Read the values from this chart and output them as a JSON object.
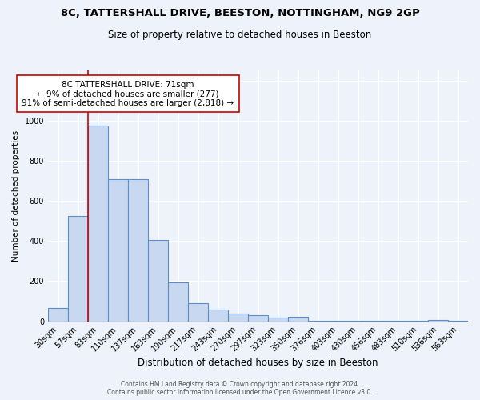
{
  "title": "8C, TATTERSHALL DRIVE, BEESTON, NOTTINGHAM, NG9 2GP",
  "subtitle": "Size of property relative to detached houses in Beeston",
  "xlabel": "Distribution of detached houses by size in Beeston",
  "ylabel": "Number of detached properties",
  "footer_line1": "Contains HM Land Registry data © Crown copyright and database right 2024.",
  "footer_line2": "Contains public sector information licensed under the Open Government Licence v3.0.",
  "categories": [
    "30sqm",
    "57sqm",
    "83sqm",
    "110sqm",
    "137sqm",
    "163sqm",
    "190sqm",
    "217sqm",
    "243sqm",
    "270sqm",
    "297sqm",
    "323sqm",
    "350sqm",
    "376sqm",
    "403sqm",
    "430sqm",
    "456sqm",
    "483sqm",
    "510sqm",
    "536sqm",
    "563sqm"
  ],
  "values": [
    65,
    525,
    975,
    710,
    710,
    405,
    195,
    90,
    58,
    38,
    30,
    17,
    22,
    4,
    3,
    2,
    2,
    1,
    2,
    8,
    2
  ],
  "bar_color": "#c8d8f0",
  "bar_edge_color": "#5b8fc9",
  "bar_edge_width": 0.8,
  "ylim": [
    0,
    1250
  ],
  "yticks": [
    0,
    200,
    400,
    600,
    800,
    1000,
    1200
  ],
  "red_line_x": 1.5,
  "red_line_color": "#cc0000",
  "annotation_text": "8C TATTERSHALL DRIVE: 71sqm\n← 9% of detached houses are smaller (277)\n91% of semi-detached houses are larger (2,818) →",
  "annotation_box_color": "#ffffff",
  "annotation_box_edge_color": "#cc0000",
  "bg_color": "#eef2fb",
  "plot_bg_color": "#eef2fb",
  "grid_color": "#ffffff",
  "title_fontsize": 9.5,
  "subtitle_fontsize": 8.5,
  "xlabel_fontsize": 8.5,
  "ylabel_fontsize": 7.5,
  "tick_fontsize": 7,
  "annotation_fontsize": 7.5,
  "footer_fontsize": 5.5
}
